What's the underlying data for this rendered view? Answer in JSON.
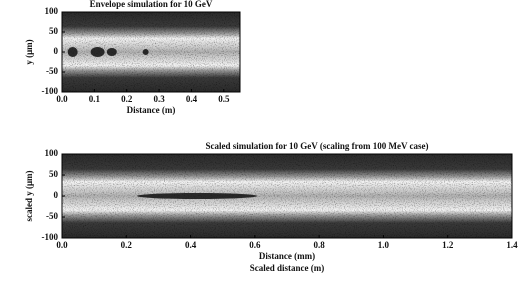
{
  "chart_data": [
    {
      "type": "heatmap",
      "title": "Envelope simulation for 10 GeV",
      "x_label": "Distance (m)",
      "y_label": "y (μm)",
      "xlim": [
        0,
        0.55
      ],
      "xticks": [
        {
          "value": 0,
          "label": "0.0"
        },
        0.1,
        0.2,
        0.3,
        0.4,
        0.5
      ],
      "ylim": [
        -100,
        100
      ],
      "yticks": [
        100,
        50,
        0,
        -50,
        -100
      ]
    },
    {
      "type": "heatmap",
      "title": "Scaled simulation for 10 GeV (scaling from 100 MeV case)",
      "x_label": "Distance (mm)",
      "x_label_2": "Scaled distance (m)",
      "y_label": "scaled y (μm)",
      "xlim": [
        0,
        1.4
      ],
      "xticks": [
        {
          "value": 0,
          "label": "0.0"
        },
        0.2,
        0.4,
        0.6,
        0.8,
        {
          "value": 1,
          "label": "1.0"
        },
        1.2,
        1.4
      ],
      "ylim": [
        -100,
        100
      ],
      "yticks": [
        100,
        50,
        0,
        -50,
        -100
      ]
    }
  ]
}
